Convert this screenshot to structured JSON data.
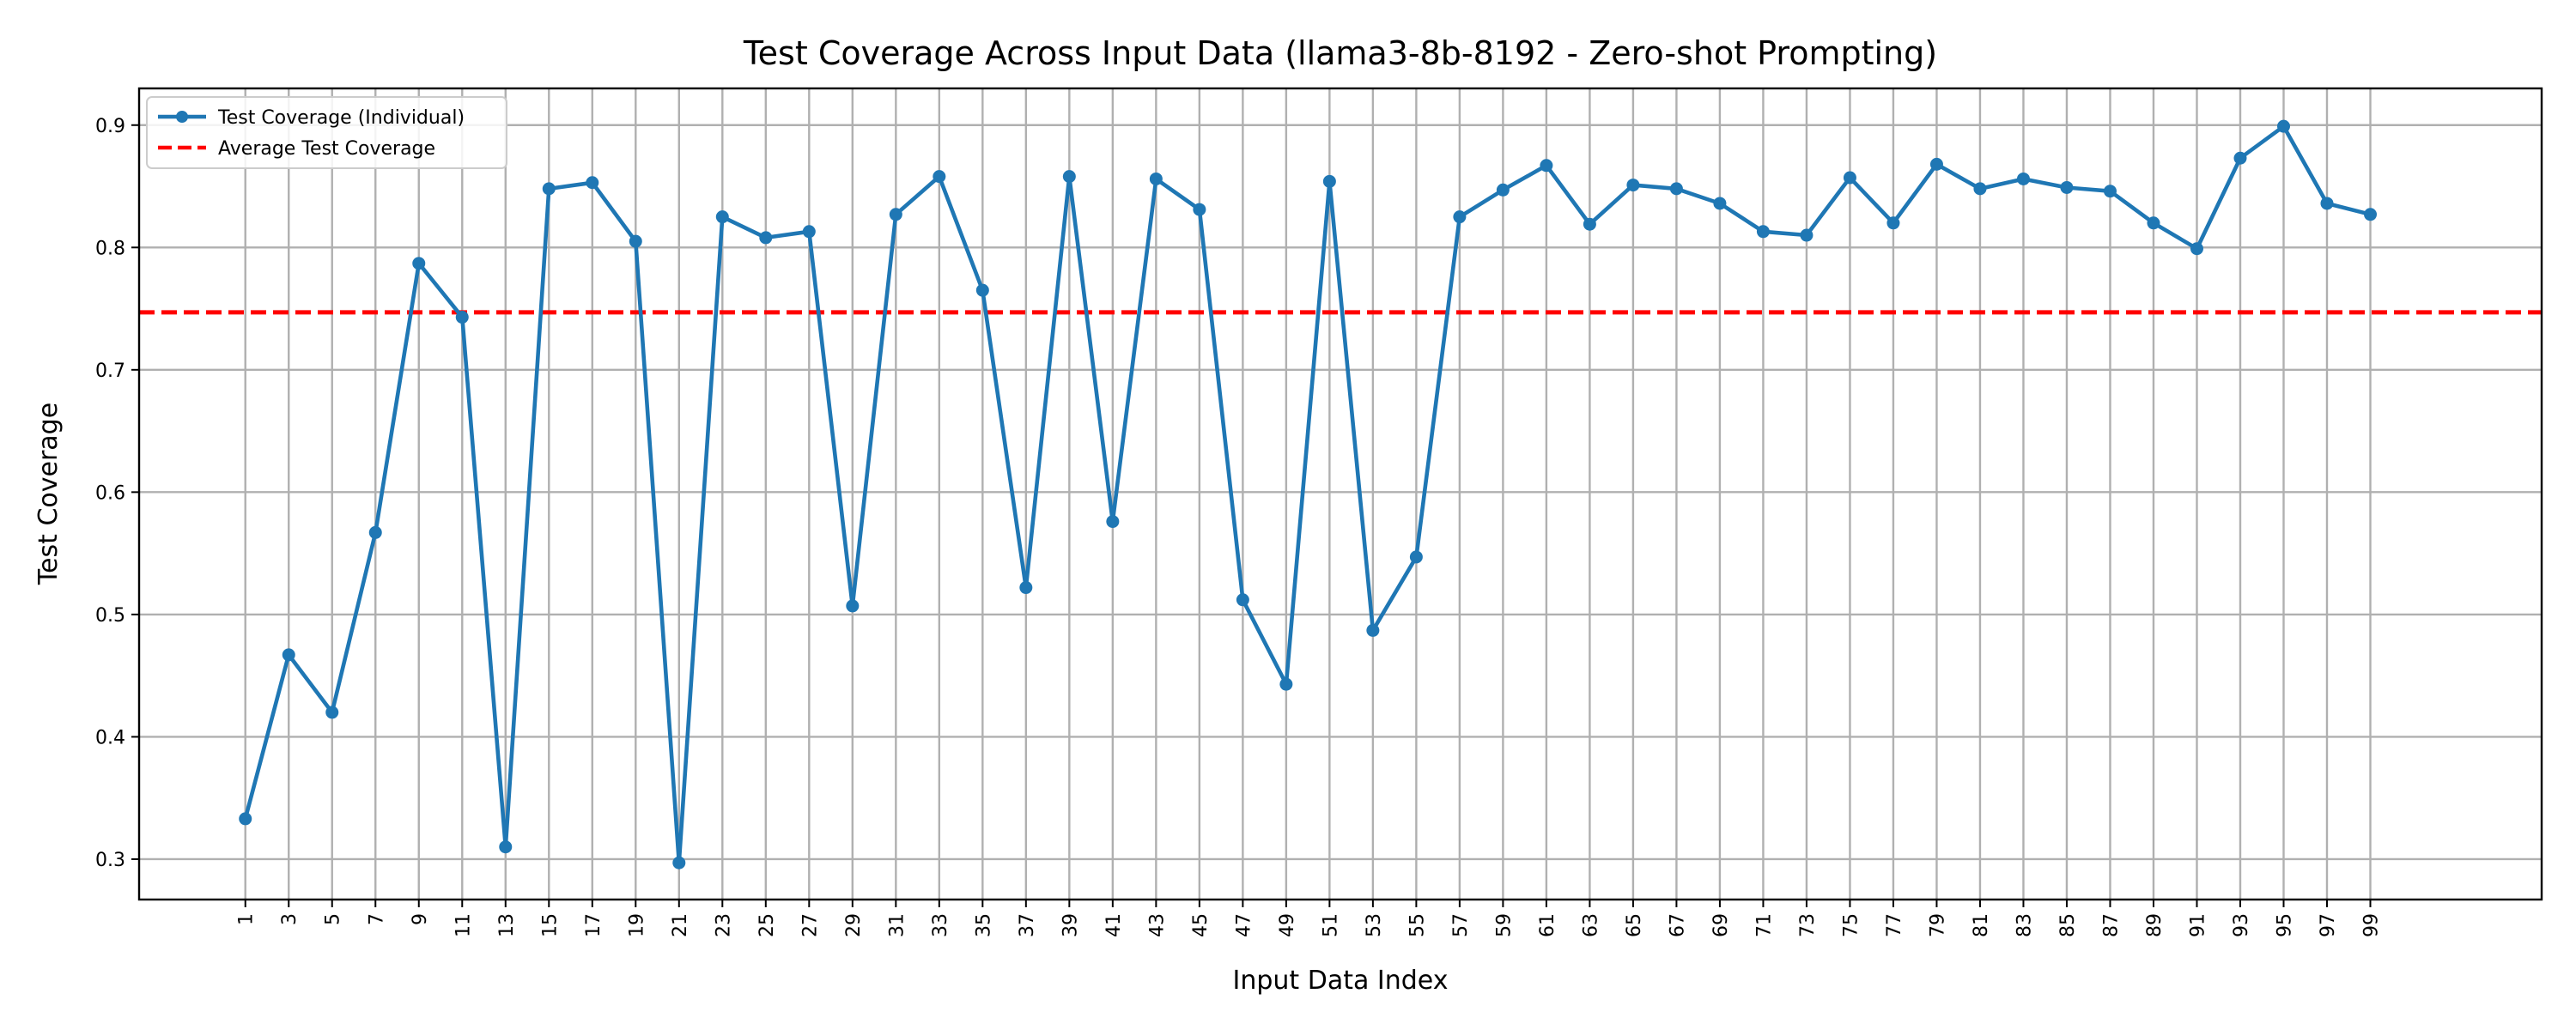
{
  "chart_data": {
    "type": "line",
    "title": "Test Coverage Across Input Data (llama3-8b-8192 - Zero-shot Prompting)",
    "xlabel": "Input Data Index",
    "ylabel": "Test Coverage",
    "x": [
      1,
      3,
      5,
      7,
      9,
      11,
      13,
      15,
      17,
      19,
      21,
      23,
      25,
      27,
      29,
      31,
      33,
      35,
      37,
      39,
      41,
      43,
      45,
      47,
      49,
      51,
      53,
      55,
      57,
      59,
      61,
      63,
      65,
      67,
      69,
      71,
      73,
      75,
      77,
      79,
      81,
      83,
      85,
      87,
      89,
      91,
      93,
      95,
      97,
      99
    ],
    "xticks": [
      "1",
      "3",
      "5",
      "7",
      "9",
      "11",
      "13",
      "15",
      "17",
      "19",
      "21",
      "23",
      "25",
      "27",
      "29",
      "31",
      "33",
      "35",
      "37",
      "39",
      "41",
      "43",
      "45",
      "47",
      "49",
      "51",
      "53",
      "55",
      "57",
      "59",
      "61",
      "63",
      "65",
      "67",
      "69",
      "71",
      "73",
      "75",
      "77",
      "79",
      "81",
      "83",
      "85",
      "87",
      "89",
      "91",
      "93",
      "95",
      "97",
      "99"
    ],
    "yticks": [
      "0.3",
      "0.4",
      "0.5",
      "0.6",
      "0.7",
      "0.8",
      "0.9"
    ],
    "xlim": [
      -3.9,
      106.9
    ],
    "ylim": [
      0.267,
      0.93
    ],
    "grid": true,
    "legend_position": "upper left",
    "series": [
      {
        "name": "Test Coverage (Individual)",
        "color": "#1f77b4",
        "marker": "circle",
        "values": [
          0.333,
          0.467,
          0.42,
          0.567,
          0.787,
          0.743,
          0.31,
          0.848,
          0.853,
          0.805,
          0.297,
          0.825,
          0.808,
          0.813,
          0.507,
          0.827,
          0.858,
          0.765,
          0.522,
          0.858,
          0.576,
          0.856,
          0.831,
          0.512,
          0.443,
          0.854,
          0.487,
          0.547,
          0.825,
          0.847,
          0.867,
          0.819,
          0.851,
          0.848,
          0.836,
          0.813,
          0.81,
          0.857,
          0.82,
          0.868,
          0.848,
          0.856,
          0.849,
          0.846,
          0.82,
          0.799,
          0.873,
          0.899,
          0.836,
          0.827
        ]
      }
    ],
    "reference_lines": [
      {
        "name": "Average Test Coverage",
        "value": 0.747,
        "color": "#ff0000",
        "style": "dashed"
      }
    ]
  }
}
